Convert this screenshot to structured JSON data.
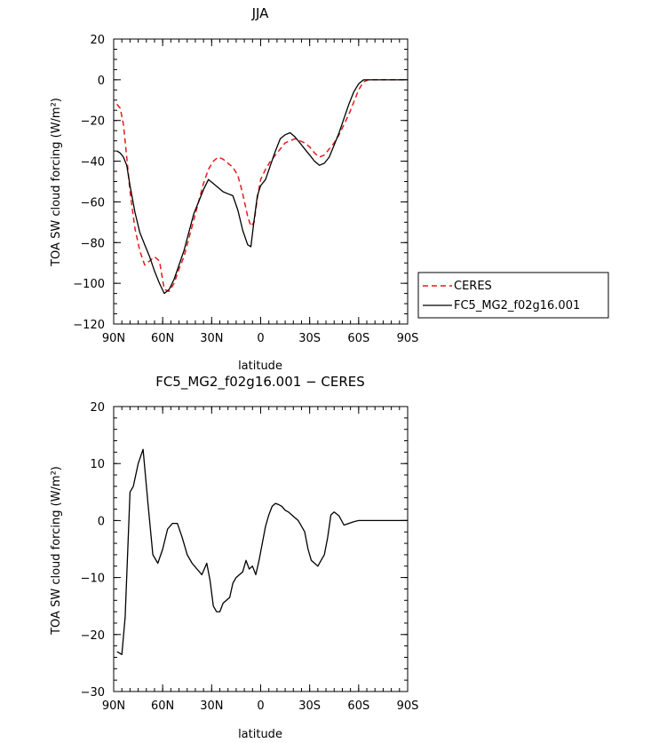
{
  "chart_data": [
    {
      "type": "line",
      "title": "JJA",
      "xlabel": "latitude",
      "ylabel": "TOA SW cloud forcing (W/m²)",
      "xlim": [
        90,
        -90
      ],
      "ylim": [
        -120,
        20
      ],
      "xticks": [
        90,
        60,
        30,
        0,
        -30,
        -60,
        -90
      ],
      "xtick_labels": [
        "90N",
        "60N",
        "30N",
        "0",
        "30S",
        "60S",
        "90S"
      ],
      "yticks": [
        20,
        0,
        -20,
        -40,
        -60,
        -80,
        -100,
        -120
      ],
      "ytick_labels": [
        "20",
        "0",
        "−20",
        "−40",
        "−60",
        "−80",
        "−100",
        "−120"
      ],
      "legend": {
        "placement": "right"
      },
      "series": [
        {
          "name": "CERES",
          "color": "#e41a1c",
          "style": "dashed",
          "x": [
            88,
            86,
            84,
            82,
            80,
            77,
            74,
            71,
            68,
            65,
            62,
            59,
            56,
            53,
            50,
            47,
            44,
            41,
            38,
            35,
            32,
            29,
            26,
            23,
            20,
            17,
            14,
            11,
            8,
            6,
            4,
            2,
            0,
            -3,
            -6,
            -9,
            -12,
            -15,
            -18,
            -21,
            -24,
            -27,
            -30,
            -33,
            -36,
            -39,
            -42,
            -45,
            -48,
            -51,
            -54,
            -57,
            -60,
            -63,
            -66,
            -69,
            -72,
            -75,
            -78,
            -81,
            -84,
            -87,
            -90
          ],
          "y": [
            -12,
            -14,
            -22,
            -38,
            -55,
            -73,
            -84,
            -91,
            -89,
            -87,
            -89,
            -103,
            -104,
            -100,
            -93,
            -87,
            -78,
            -69,
            -60,
            -51,
            -44,
            -40,
            -38,
            -39,
            -41,
            -43,
            -47,
            -56,
            -67,
            -72,
            -70,
            -58,
            -49,
            -44,
            -40,
            -37,
            -34,
            -31,
            -30,
            -29,
            -30,
            -31,
            -33,
            -36,
            -38,
            -37,
            -34,
            -31,
            -27,
            -22,
            -17,
            -11,
            -5,
            -1,
            0,
            0,
            0,
            0,
            0,
            0,
            0,
            0,
            0
          ]
        },
        {
          "name": "FC5_MG2_f02g16.001",
          "color": "#000000",
          "style": "solid",
          "x": [
            88,
            86,
            84,
            82,
            80,
            77,
            74,
            71,
            68,
            65,
            62,
            59,
            56,
            53,
            50,
            47,
            44,
            41,
            38,
            35,
            32,
            29,
            26,
            23,
            20,
            17,
            14,
            11,
            8,
            6,
            4,
            2,
            0,
            -3,
            -6,
            -9,
            -12,
            -15,
            -18,
            -21,
            -24,
            -27,
            -30,
            -33,
            -36,
            -39,
            -42,
            -45,
            -48,
            -51,
            -54,
            -57,
            -60,
            -63,
            -66,
            -69,
            -72,
            -75,
            -78,
            -81,
            -84,
            -87,
            -90
          ],
          "y": [
            -35,
            -36,
            -38,
            -42,
            -52,
            -65,
            -75,
            -81,
            -87,
            -94,
            -100,
            -105,
            -103,
            -98,
            -91,
            -84,
            -75,
            -66,
            -60,
            -54,
            -49,
            -51,
            -53,
            -55,
            -56,
            -57,
            -64,
            -74,
            -81,
            -82,
            -69,
            -57,
            -52,
            -49,
            -42,
            -35,
            -29,
            -27,
            -26,
            -28,
            -31,
            -34,
            -37,
            -40,
            -42,
            -41,
            -38,
            -32,
            -26,
            -19,
            -12,
            -6,
            -2,
            0,
            0,
            0,
            0,
            0,
            0,
            0,
            0,
            0,
            0
          ]
        }
      ]
    },
    {
      "type": "line",
      "title": "FC5_MG2_f02g16.001 − CERES",
      "xlabel": "latitude",
      "ylabel": "TOA SW cloud forcing (W/m²)",
      "xlim": [
        90,
        -90
      ],
      "ylim": [
        -30,
        20
      ],
      "xticks": [
        90,
        60,
        30,
        0,
        -30,
        -60,
        -90
      ],
      "xtick_labels": [
        "90N",
        "60N",
        "30N",
        "0",
        "30S",
        "60S",
        "90S"
      ],
      "yticks": [
        20,
        10,
        0,
        -10,
        -20,
        -30
      ],
      "ytick_labels": [
        "20",
        "10",
        "0",
        "−10",
        "−20",
        "−30"
      ],
      "series": [
        {
          "color": "#000000",
          "style": "solid",
          "x": [
            88,
            85,
            83,
            80,
            78,
            75,
            72,
            69,
            66,
            63,
            60,
            57,
            54,
            51,
            48,
            45,
            42,
            39,
            36,
            33,
            31,
            29,
            27,
            25,
            23,
            21,
            19,
            17,
            15,
            13,
            11,
            9,
            7,
            5,
            3,
            1,
            -1,
            -3,
            -5,
            -7,
            -9,
            -11,
            -13,
            -15,
            -17,
            -19,
            -21,
            -23,
            -25,
            -27,
            -29,
            -31,
            -33,
            -35,
            -37,
            -39,
            -41,
            -43,
            -45,
            -48,
            -51,
            -54,
            -57,
            -60,
            -63,
            -66,
            -69,
            -72,
            -75,
            -78,
            -81,
            -84,
            -87,
            -90
          ],
          "y": [
            -23,
            -23.5,
            -17,
            5,
            6,
            10,
            12.5,
            3,
            -6,
            -7.5,
            -5,
            -1.5,
            -0.5,
            -0.5,
            -3,
            -6,
            -7.5,
            -8.5,
            -9.5,
            -7.5,
            -10.5,
            -15,
            -16,
            -16,
            -14.5,
            -14,
            -13.5,
            -11,
            -10,
            -9.5,
            -9,
            -7,
            -8.5,
            -8,
            -9.5,
            -7,
            -4,
            -1,
            1,
            2.5,
            3,
            2.8,
            2.5,
            1.8,
            1.5,
            1,
            0.5,
            0,
            -1,
            -2,
            -5,
            -7,
            -7.5,
            -8,
            -7,
            -6,
            -3,
            1,
            1.5,
            0.8,
            -0.8,
            -0.5,
            -0.2,
            0,
            0,
            0,
            0,
            0,
            0,
            0,
            0,
            0,
            0,
            0
          ]
        }
      ]
    }
  ]
}
